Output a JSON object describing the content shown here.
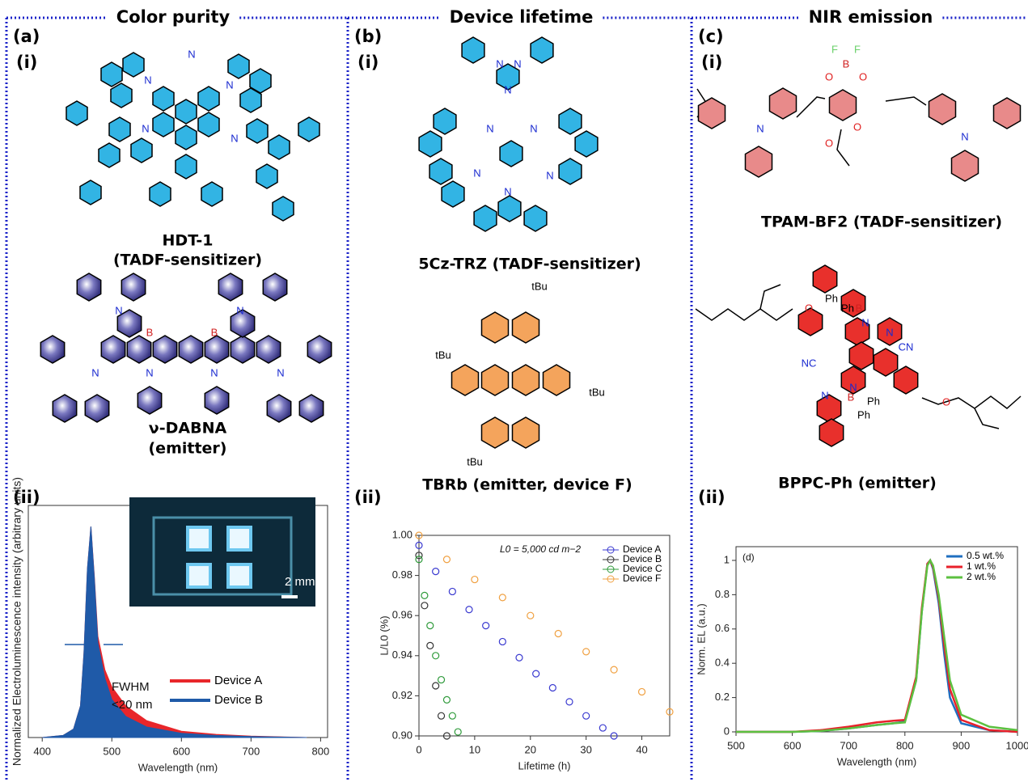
{
  "panels": [
    {
      "letter": "(a)",
      "heading": "Color purity",
      "sub1": "(i)",
      "sub2": "(ii)",
      "molecules": [
        {
          "name": "HDT-1",
          "role": "(TADF-sensitizer)",
          "atoms": [
            "N",
            "N",
            "N",
            "N",
            "N"
          ]
        },
        {
          "name": "ν-DABNA",
          "role": "(emitter)",
          "atoms": [
            "N",
            "N",
            "N",
            "N",
            "N",
            "N",
            "B",
            "B"
          ]
        }
      ]
    },
    {
      "letter": "(b)",
      "heading": "Device lifetime",
      "sub1": "(i)",
      "sub2": "(ii)",
      "molecules": [
        {
          "name": "5Cz-TRZ (TADF-sensitizer)",
          "atoms": [
            "N",
            "N",
            "N",
            "N",
            "N",
            "N",
            "N",
            "N"
          ]
        },
        {
          "name": "TBRb (emitter, device F)",
          "atoms": [
            "tBu",
            "tBu",
            "tBu",
            "tBu"
          ]
        }
      ]
    },
    {
      "letter": "(c)",
      "heading": "NIR emission",
      "sub1": "(i)",
      "sub2": "(ii)",
      "molecules": [
        {
          "name": "TPAM-BF2 (TADF-sensitizer)",
          "atoms": [
            "F",
            "F",
            "B",
            "O",
            "O",
            "O",
            "O",
            "N",
            "N"
          ]
        },
        {
          "name": "BPPC-Ph (emitter)",
          "atoms": [
            "Ph",
            "Ph",
            "B",
            "N",
            "N",
            "CN",
            "NC",
            "N",
            "N",
            "B",
            "Ph",
            "Ph",
            "O",
            "O"
          ]
        }
      ]
    }
  ],
  "chart_data": [
    {
      "type": "area",
      "xlabel": "Wavelength (nm)",
      "ylabel": "Normalized Electroluminescence intensity (arbitrary units)",
      "x": [
        400,
        430,
        445,
        455,
        460,
        465,
        470,
        475,
        480,
        490,
        500,
        520,
        550,
        600,
        650,
        700,
        780
      ],
      "series": [
        {
          "name": "Device A",
          "color": "#e8262a",
          "values": [
            0,
            0.01,
            0.04,
            0.15,
            0.4,
            0.8,
            1.0,
            0.76,
            0.48,
            0.32,
            0.24,
            0.15,
            0.08,
            0.03,
            0.015,
            0.007,
            0
          ]
        },
        {
          "name": "Device B",
          "color": "#1f5aa8",
          "values": [
            0,
            0.01,
            0.04,
            0.15,
            0.4,
            0.8,
            1.0,
            0.75,
            0.45,
            0.28,
            0.18,
            0.1,
            0.05,
            0.02,
            0.01,
            0.005,
            0
          ]
        }
      ],
      "xlim": [
        380,
        810
      ],
      "xticks": [
        400,
        500,
        600,
        700,
        800
      ],
      "ylim": [
        0,
        1.1
      ],
      "annotations": [
        "FWHM",
        "<20 nm",
        "2 mm"
      ]
    },
    {
      "type": "scatter",
      "xlabel": "Lifetime (h)",
      "ylabel": "L/L0 (%)",
      "series": [
        {
          "name": "Device A",
          "color": "#3a3ad0",
          "x": [
            0,
            3,
            6,
            9,
            12,
            15,
            18,
            21,
            24,
            27,
            30,
            33,
            35
          ],
          "values": [
            0.995,
            0.982,
            0.972,
            0.963,
            0.955,
            0.947,
            0.939,
            0.931,
            0.924,
            0.917,
            0.91,
            0.904,
            0.9
          ]
        },
        {
          "name": "Device B",
          "color": "#333333",
          "x": [
            0,
            1,
            2,
            3,
            4,
            5
          ],
          "values": [
            0.99,
            0.965,
            0.945,
            0.925,
            0.91,
            0.9
          ]
        },
        {
          "name": "Device C",
          "color": "#2e9a3a",
          "x": [
            0,
            1,
            2,
            3,
            4,
            5,
            6,
            7
          ],
          "values": [
            0.988,
            0.97,
            0.955,
            0.94,
            0.928,
            0.918,
            0.91,
            0.902
          ]
        },
        {
          "name": "Device F",
          "color": "#f0a040",
          "x": [
            0,
            5,
            10,
            15,
            20,
            25,
            30,
            35,
            40,
            45
          ],
          "values": [
            1.0,
            0.988,
            0.978,
            0.969,
            0.96,
            0.951,
            0.942,
            0.933,
            0.922,
            0.912
          ]
        }
      ],
      "xlim": [
        0,
        45
      ],
      "xticks": [
        0,
        10,
        20,
        30,
        40
      ],
      "ylim": [
        0.9,
        1.0
      ],
      "yticks": [
        {
          "value": 0.9,
          "label": "0.90"
        },
        0.92,
        0.94,
        0.96,
        0.98,
        {
          "value": 1.0,
          "label": "1.00"
        }
      ],
      "annotations": [
        "L0 = 5,000 cd m−2"
      ]
    },
    {
      "type": "line",
      "xlabel": "Wavelength (nm)",
      "ylabel": "Norm. EL (a.u.)",
      "x": [
        500,
        600,
        650,
        700,
        750,
        780,
        800,
        820,
        830,
        840,
        845,
        850,
        860,
        870,
        880,
        900,
        950,
        1000
      ],
      "series": [
        {
          "name": "0.5 wt.%",
          "color": "#1f6fc0",
          "values": [
            0,
            0,
            0.005,
            0.02,
            0.04,
            0.05,
            0.06,
            0.3,
            0.7,
            0.98,
            1.0,
            0.95,
            0.75,
            0.45,
            0.2,
            0.05,
            0.01,
            0
          ]
        },
        {
          "name": "1 wt.%",
          "color": "#e8202a",
          "values": [
            0,
            0,
            0.01,
            0.03,
            0.055,
            0.065,
            0.07,
            0.32,
            0.72,
            0.98,
            1.0,
            0.96,
            0.78,
            0.5,
            0.25,
            0.07,
            0.01,
            0
          ]
        },
        {
          "name": "2 wt.%",
          "color": "#5cc040",
          "values": [
            0,
            0,
            0.005,
            0.02,
            0.04,
            0.05,
            0.055,
            0.3,
            0.7,
            0.97,
            1.0,
            0.97,
            0.8,
            0.55,
            0.3,
            0.1,
            0.03,
            0.01
          ]
        }
      ],
      "xlim": [
        500,
        1000
      ],
      "xticks": [
        500,
        600,
        700,
        800,
        900,
        1000
      ],
      "ylim": [
        0,
        1.08
      ],
      "yticks": [
        0,
        0.2,
        0.4,
        0.6,
        0.8,
        1
      ],
      "annotations": [
        "(d)"
      ]
    }
  ]
}
